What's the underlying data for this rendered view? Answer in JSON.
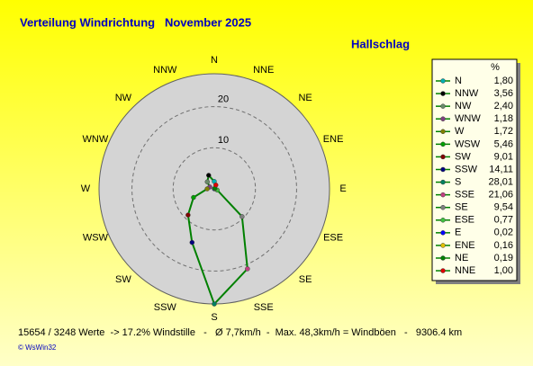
{
  "chart_data": {
    "type": "radar",
    "title": "Verteilung Windrichtung   November 2025",
    "station": "Hallschlag",
    "unit": "%",
    "categories": [
      "N",
      "NNW",
      "NW",
      "WNW",
      "W",
      "WSW",
      "SW",
      "SSW",
      "S",
      "SSE",
      "SE",
      "ESE",
      "E",
      "ENE",
      "NE",
      "NNE"
    ],
    "values": [
      1.8,
      3.56,
      2.4,
      1.18,
      1.72,
      5.46,
      9.01,
      14.11,
      28.01,
      21.06,
      9.54,
      0.77,
      0.02,
      0.16,
      0.19,
      1.0
    ],
    "value_labels": [
      "1,80",
      "3,56",
      "2,40",
      "1,18",
      "1,72",
      "5,46",
      "9,01",
      "14,11",
      "28,01",
      "21,06",
      "9,54",
      "0,77",
      "0,02",
      "0,16",
      "0,19",
      "1,00"
    ],
    "colors": [
      "#00b0b0",
      "#000000",
      "#6a8a6a",
      "#804080",
      "#808000",
      "#00a000",
      "#800000",
      "#000080",
      "#008060",
      "#c04080",
      "#808080",
      "#40c040",
      "#0000ff",
      "#e0c000",
      "#008000",
      "#e00000"
    ],
    "line_color": "#008000",
    "rlim": [
      0,
      28
    ],
    "rticks": [
      10,
      20
    ],
    "grid": true,
    "footer": "15654 / 3248 Werte  -> 17.2% Windstille   -   Ø 7,7km/h  -  Max. 48,3km/h = Windböen   -   9306.4 km",
    "credit": "© WsWin32"
  }
}
